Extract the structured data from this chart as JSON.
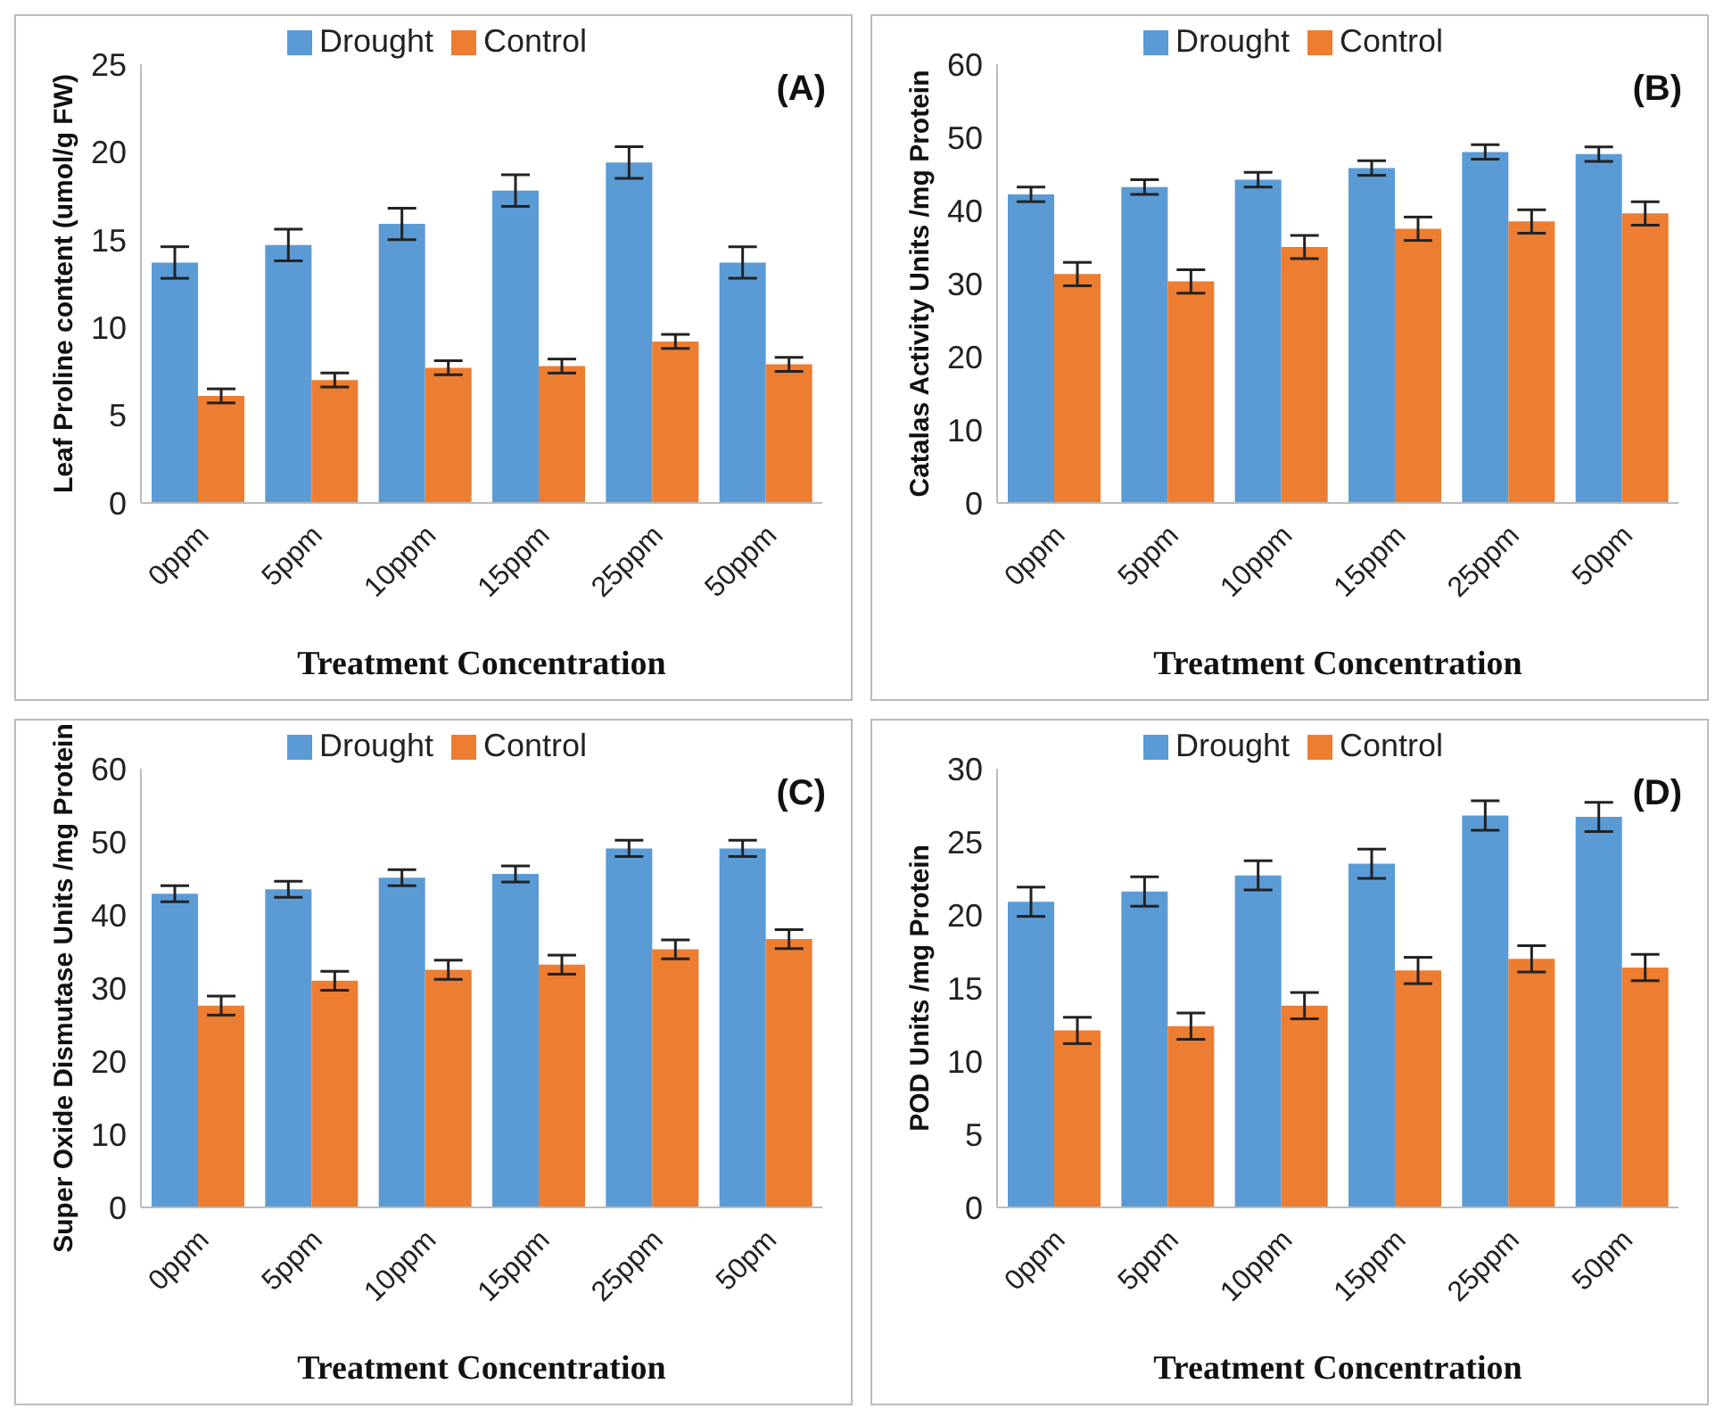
{
  "chart_data": [
    {
      "type": "bar",
      "categories": [
        "0ppm",
        "5ppm",
        "10ppm",
        "15ppm",
        "25ppm",
        "50ppm"
      ],
      "xlabel": "Treatment Concentration",
      "ylabel": "Leaf Proline content (umol/g FW)",
      "annotations": [
        "(A)"
      ],
      "ylim": [
        0,
        25
      ],
      "yticks": [
        0,
        5,
        10,
        15,
        20,
        25
      ],
      "legend": "top",
      "grid": false,
      "series": [
        {
          "name": "Drought",
          "color": "#5b9bd5",
          "values": [
            13.7,
            14.7,
            15.9,
            17.8,
            19.4,
            13.7
          ],
          "errors": [
            0.9,
            0.9,
            0.9,
            0.9,
            0.9,
            0.9
          ]
        },
        {
          "name": "Control",
          "color": "#ed7d31",
          "values": [
            6.1,
            7.0,
            7.7,
            7.8,
            9.2,
            7.9
          ],
          "errors": [
            0.4,
            0.4,
            0.4,
            0.4,
            0.4,
            0.4
          ]
        }
      ]
    },
    {
      "type": "bar",
      "categories": [
        "0ppm",
        "5ppm",
        "10ppm",
        "15ppm",
        "25ppm",
        "50pm"
      ],
      "xlabel": "Treatment Concentration",
      "ylabel": "Catalas Activity Units /mg Protein",
      "annotations": [
        "(B)"
      ],
      "ylim": [
        0,
        60
      ],
      "yticks": [
        0,
        10,
        20,
        30,
        40,
        50,
        60
      ],
      "legend": "top",
      "grid": false,
      "series": [
        {
          "name": "Drought",
          "color": "#5b9bd5",
          "values": [
            42.2,
            43.2,
            44.2,
            45.8,
            48.0,
            47.7
          ],
          "errors": [
            1,
            1,
            1,
            1,
            1,
            1
          ]
        },
        {
          "name": "Control",
          "color": "#ed7d31",
          "values": [
            31.3,
            30.3,
            35.0,
            37.5,
            38.5,
            39.6
          ],
          "errors": [
            1.6,
            1.6,
            1.6,
            1.6,
            1.6,
            1.6
          ]
        }
      ]
    },
    {
      "type": "bar",
      "categories": [
        "0ppm",
        "5ppm",
        "10ppm",
        "15ppm",
        "25ppm",
        "50pm"
      ],
      "xlabel": "Treatment Concentration",
      "ylabel": "Super Oxide Dismutase Units /mg Protein",
      "annotations": [
        "(C)"
      ],
      "ylim": [
        0,
        60
      ],
      "yticks": [
        0,
        10,
        20,
        30,
        40,
        50,
        60
      ],
      "legend": "top",
      "grid": false,
      "series": [
        {
          "name": "Drought",
          "color": "#5b9bd5",
          "values": [
            42.9,
            43.5,
            45.1,
            45.6,
            49.1,
            49.1
          ],
          "errors": [
            1.1,
            1.1,
            1.1,
            1.1,
            1.1,
            1.1
          ]
        },
        {
          "name": "Control",
          "color": "#ed7d31",
          "values": [
            27.6,
            31.0,
            32.5,
            33.2,
            35.3,
            36.7
          ],
          "errors": [
            1.3,
            1.3,
            1.3,
            1.3,
            1.3,
            1.3
          ]
        }
      ]
    },
    {
      "type": "bar",
      "categories": [
        "0ppm",
        "5ppm",
        "10ppm",
        "15ppm",
        "25ppm",
        "50pm"
      ],
      "xlabel": "Treatment Concentration",
      "ylabel": "POD Units /mg Protein",
      "annotations": [
        "(D)"
      ],
      "ylim": [
        0,
        30
      ],
      "yticks": [
        0,
        5,
        10,
        15,
        20,
        25,
        30
      ],
      "legend": "top",
      "grid": false,
      "series": [
        {
          "name": "Drought",
          "color": "#5b9bd5",
          "values": [
            20.9,
            21.6,
            22.7,
            23.5,
            26.8,
            26.7
          ],
          "errors": [
            1,
            1,
            1,
            1,
            1,
            1
          ]
        },
        {
          "name": "Control",
          "color": "#ed7d31",
          "values": [
            12.1,
            12.4,
            13.8,
            16.2,
            17.0,
            16.4
          ],
          "errors": [
            0.9,
            0.9,
            0.9,
            0.9,
            0.9,
            0.9
          ]
        }
      ]
    }
  ]
}
